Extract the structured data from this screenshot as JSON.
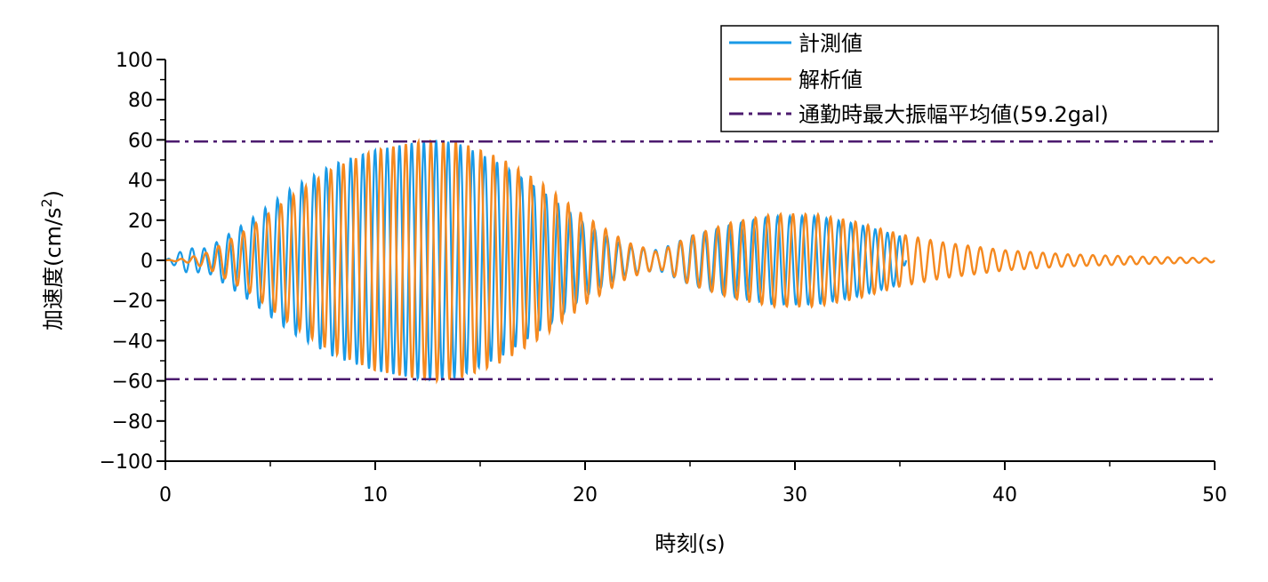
{
  "chart_data": {
    "type": "line",
    "xlabel": "時刻(s)",
    "ylabel_main": "加速度(cm/s",
    "ylabel_sup": "2",
    "ylabel_close": ")",
    "xlim": [
      0,
      50
    ],
    "ylim": [
      -100,
      100
    ],
    "x_ticks": [
      0,
      10,
      20,
      30,
      40,
      50
    ],
    "y_ticks": [
      100,
      80,
      60,
      40,
      20,
      0,
      -20,
      -40,
      -60,
      -80,
      -100
    ],
    "x_tick_labels": [
      "0",
      "10",
      "20",
      "30",
      "40",
      "50"
    ],
    "y_tick_labels": [
      "100",
      "80",
      "60",
      "40",
      "20",
      "0",
      "−20",
      "−40",
      "−60",
      "−80",
      "−100"
    ],
    "grid": false,
    "legend_position": "top-right",
    "series": [
      {
        "name": "計測値",
        "color": "#1a9ae6",
        "style": "solid",
        "t_range": [
          0,
          35.3
        ],
        "frequency_hz": 1.72,
        "envelope": [
          [
            0,
            0
          ],
          [
            1,
            6
          ],
          [
            2,
            6
          ],
          [
            4,
            20
          ],
          [
            6,
            36
          ],
          [
            8,
            48
          ],
          [
            10,
            55
          ],
          [
            12,
            59
          ],
          [
            13,
            60
          ],
          [
            14,
            58
          ],
          [
            16,
            48
          ],
          [
            18,
            34
          ],
          [
            20,
            18
          ],
          [
            22,
            7
          ],
          [
            23.5,
            5
          ],
          [
            25,
            12
          ],
          [
            27,
            18
          ],
          [
            29,
            22
          ],
          [
            31,
            22
          ],
          [
            33,
            18
          ],
          [
            35,
            12
          ],
          [
            35.3,
            0
          ]
        ]
      },
      {
        "name": "解析値",
        "color": "#f5891f",
        "style": "solid",
        "t_range": [
          0,
          50
        ],
        "frequency_hz": 1.68,
        "envelope": [
          [
            0,
            0
          ],
          [
            1,
            1
          ],
          [
            2,
            4
          ],
          [
            4,
            16
          ],
          [
            6,
            32
          ],
          [
            8,
            46
          ],
          [
            10,
            55
          ],
          [
            12,
            59
          ],
          [
            13,
            60
          ],
          [
            14,
            59
          ],
          [
            16,
            51
          ],
          [
            18,
            38
          ],
          [
            20,
            22
          ],
          [
            22,
            9
          ],
          [
            23.5,
            4
          ],
          [
            25,
            12
          ],
          [
            27,
            19
          ],
          [
            29,
            23
          ],
          [
            31,
            23
          ],
          [
            33,
            19
          ],
          [
            35,
            13
          ],
          [
            37,
            9
          ],
          [
            40,
            5
          ],
          [
            43,
            3
          ],
          [
            46,
            2
          ],
          [
            50,
            1
          ]
        ]
      },
      {
        "name": "通勤時最大振幅平均値(59.2gal)",
        "color": "#4b1a6e",
        "style": "dash-dot",
        "levels": [
          59.2,
          -59.2
        ]
      }
    ]
  }
}
